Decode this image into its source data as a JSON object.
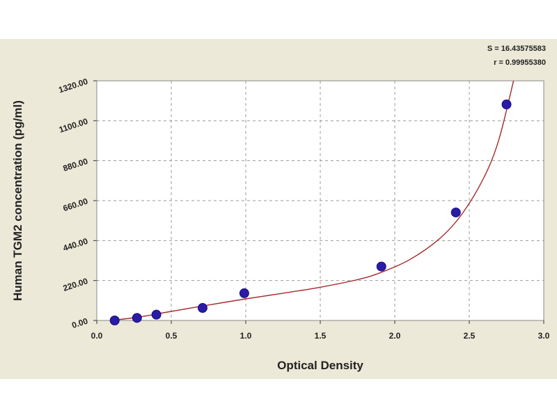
{
  "chart_data": {
    "type": "scatter",
    "xlabel": "Optical Density",
    "ylabel": "Human TGM2 concentration (pg/ml)",
    "xlim": [
      0,
      3.0
    ],
    "ylim": [
      0,
      1320
    ],
    "x_ticks": [
      "0.0",
      "0.5",
      "1.0",
      "1.5",
      "2.0",
      "2.5",
      "3.0"
    ],
    "y_ticks": [
      "0.00",
      "220.00",
      "440.00",
      "660.00",
      "880.00",
      "1100.00",
      "1320.00"
    ],
    "grid": true,
    "stats": {
      "s": "S = 16.43575583",
      "r": "r = 0.99955380"
    },
    "points": [
      {
        "x": 0.12,
        "y": 0
      },
      {
        "x": 0.27,
        "y": 14
      },
      {
        "x": 0.4,
        "y": 32
      },
      {
        "x": 0.71,
        "y": 69
      },
      {
        "x": 0.99,
        "y": 150
      },
      {
        "x": 1.91,
        "y": 297
      },
      {
        "x": 2.41,
        "y": 595
      },
      {
        "x": 2.75,
        "y": 1190
      }
    ],
    "curve": [
      {
        "x": 0.1,
        "y": 0
      },
      {
        "x": 0.3,
        "y": 21
      },
      {
        "x": 0.5,
        "y": 50
      },
      {
        "x": 0.75,
        "y": 85
      },
      {
        "x": 1.0,
        "y": 119
      },
      {
        "x": 1.25,
        "y": 150
      },
      {
        "x": 1.5,
        "y": 183
      },
      {
        "x": 1.75,
        "y": 225
      },
      {
        "x": 1.9,
        "y": 262
      },
      {
        "x": 2.1,
        "y": 335
      },
      {
        "x": 2.3,
        "y": 450
      },
      {
        "x": 2.45,
        "y": 585
      },
      {
        "x": 2.6,
        "y": 790
      },
      {
        "x": 2.7,
        "y": 1000
      },
      {
        "x": 2.8,
        "y": 1330
      }
    ],
    "colors": {
      "frame_background": "#ece9d8",
      "plot_background": "#ffffff",
      "grid": "#999999",
      "curve": "#a52a2a",
      "marker": "#2a1ba8"
    }
  }
}
